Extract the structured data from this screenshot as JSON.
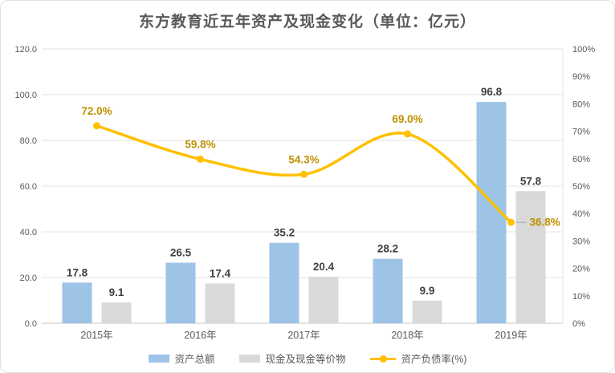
{
  "title": "东方教育近五年资产及现金变化（单位：亿元）",
  "colors": {
    "assets_bar": "#9DC3E6",
    "cash_bar": "#D9D9D9",
    "ratio_line": "#FFC000",
    "ratio_label": "#BF9000",
    "bar_label": "#404040",
    "axis_text": "#595959",
    "grid_line": "#E3E3E3",
    "axis_line": "#C6C6C6",
    "leader_line": "#A6A6A6"
  },
  "legend": [
    {
      "label": "资产总额"
    },
    {
      "label": "现金及现金等价物"
    },
    {
      "label": "资产负债率(%)"
    }
  ],
  "chart_data": {
    "type": "combo-bar-line",
    "title": "东方教育近五年资产及现金变化（单位：亿元）",
    "categories": [
      "2015年",
      "2016年",
      "2017年",
      "2018年",
      "2019年"
    ],
    "series": [
      {
        "name": "资产总额",
        "type": "bar",
        "axis": "left",
        "values": [
          17.8,
          26.5,
          35.2,
          28.2,
          96.8
        ]
      },
      {
        "name": "现金及现金等价物",
        "type": "bar",
        "axis": "left",
        "values": [
          9.1,
          17.4,
          20.4,
          9.9,
          57.8
        ]
      },
      {
        "name": "资产负债率(%)",
        "type": "line",
        "axis": "right",
        "smooth": true,
        "values": [
          72.0,
          59.8,
          54.3,
          69.0,
          36.8
        ]
      }
    ],
    "left_axis": {
      "min": 0,
      "max": 120,
      "step": 20,
      "tick_labels": [
        "120.0",
        "100.0",
        "80.0",
        "60.0",
        "40.0",
        "20.0",
        "0.0"
      ]
    },
    "right_axis": {
      "min": 0,
      "max": 100,
      "step": 10,
      "tick_labels": [
        "100%",
        "90%",
        "80%",
        "70%",
        "60%",
        "50%",
        "40%",
        "30%",
        "20%",
        "10%",
        "0%"
      ]
    },
    "grid": true,
    "legend_position": "bottom"
  }
}
